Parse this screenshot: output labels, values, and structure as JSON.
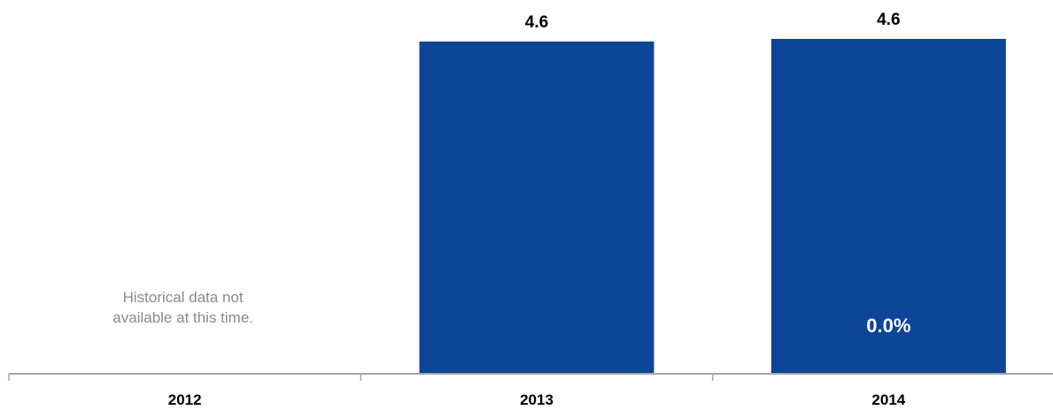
{
  "chart_data": {
    "type": "bar",
    "title": "",
    "xlabel": "",
    "ylabel": "",
    "categories": [
      "2012",
      "2013",
      "2014"
    ],
    "values": [
      null,
      4.6,
      4.6
    ],
    "value_labels": [
      "",
      "4.6",
      "4.6"
    ],
    "inner_labels": [
      "",
      "",
      "0.0%"
    ],
    "ylim": [
      0,
      4.6
    ],
    "grid": false,
    "legend": "none",
    "notes": [
      {
        "category": "2012",
        "lines": [
          "Historical data not",
          "available at this time."
        ]
      }
    ],
    "colors": {
      "bar": "#0d4598",
      "axis": "#a6a6a6",
      "note": "#8a8a8a"
    }
  }
}
